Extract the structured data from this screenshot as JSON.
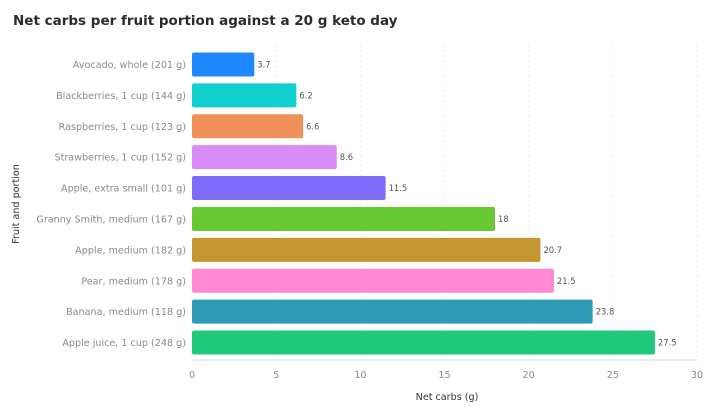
{
  "chart_data": {
    "type": "bar",
    "orientation": "horizontal",
    "title": "Net carbs per fruit portion against a 20 g keto day",
    "xlabel": "Net carbs (g)",
    "ylabel": "Fruit and portion",
    "xlim": [
      0,
      30
    ],
    "xticks": [
      0,
      5,
      10,
      15,
      20,
      25,
      30
    ],
    "grid": true,
    "legend": "none",
    "categories": [
      "Avocado, whole (201 g)",
      "Blackberries, 1 cup (144 g)",
      "Raspberries, 1 cup (123 g)",
      "Strawberries, 1 cup (152 g)",
      "Apple, extra small (101 g)",
      "Granny Smith, medium (167 g)",
      "Apple, medium (182 g)",
      "Pear, medium (178 g)",
      "Banana, medium (118 g)",
      "Apple juice, 1 cup (248 g)"
    ],
    "values": [
      3.7,
      6.2,
      6.6,
      8.6,
      11.5,
      18,
      20.7,
      21.5,
      23.8,
      27.5
    ],
    "value_labels": [
      "3.7",
      "6.2",
      "6.6",
      "8.6",
      "11.5",
      "18",
      "20.7",
      "21.5",
      "23.8",
      "27.5"
    ],
    "colors": [
      "#1f88ff",
      "#0fcfcf",
      "#f0915a",
      "#d98cf6",
      "#7b6cf9",
      "#68c934",
      "#c4962f",
      "#fe88d2",
      "#2f9ab6",
      "#20c97a"
    ]
  }
}
